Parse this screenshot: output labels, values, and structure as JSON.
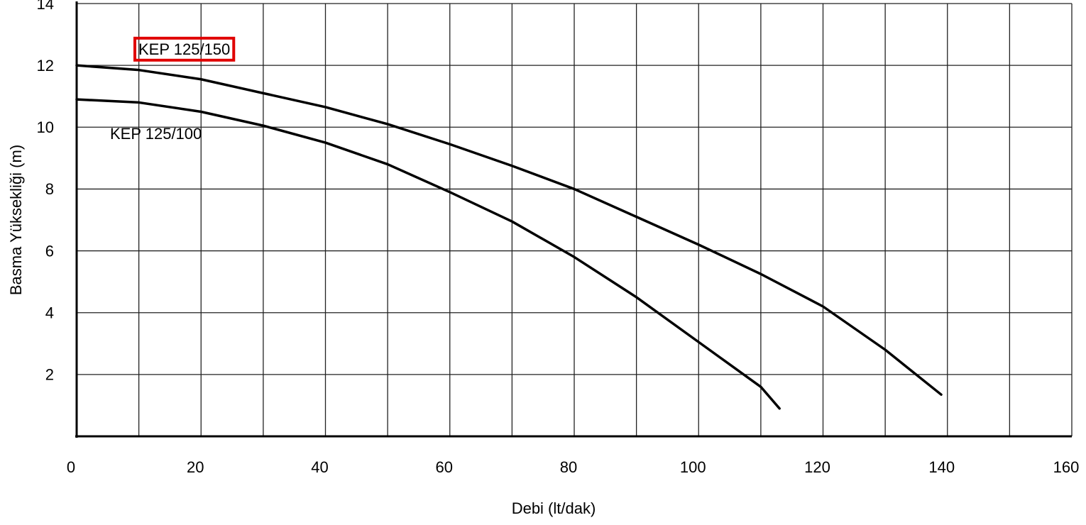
{
  "chart_data": {
    "type": "line",
    "x_label": "Debi (lt/dak)",
    "y_label": "Basma Yüksekliği (m)",
    "xlim": [
      0,
      160
    ],
    "xticks": [
      0,
      20,
      40,
      60,
      80,
      100,
      120,
      140,
      160
    ],
    "ylim": [
      0,
      14
    ],
    "yticks": [
      2,
      4,
      6,
      8,
      10,
      12,
      14
    ],
    "grid": true,
    "series": [
      {
        "name": "KEP 125/150",
        "color": "#000000",
        "x": [
          0,
          10,
          20,
          30,
          40,
          50,
          60,
          70,
          80,
          90,
          100,
          110,
          120,
          130,
          139
        ],
        "values": [
          12,
          11.85,
          11.55,
          11.1,
          10.65,
          10.1,
          9.45,
          8.75,
          8,
          7.1,
          6.2,
          5.25,
          4.2,
          2.8,
          1.35
        ]
      },
      {
        "name": "KEP 125/100",
        "color": "#000000",
        "x": [
          0,
          10,
          20,
          30,
          40,
          50,
          60,
          70,
          80,
          90,
          100,
          110,
          113
        ],
        "values": [
          10.9,
          10.8,
          10.5,
          10.05,
          9.5,
          8.8,
          7.9,
          6.95,
          5.8,
          4.5,
          3.05,
          1.6,
          0.9
        ]
      }
    ]
  }
}
